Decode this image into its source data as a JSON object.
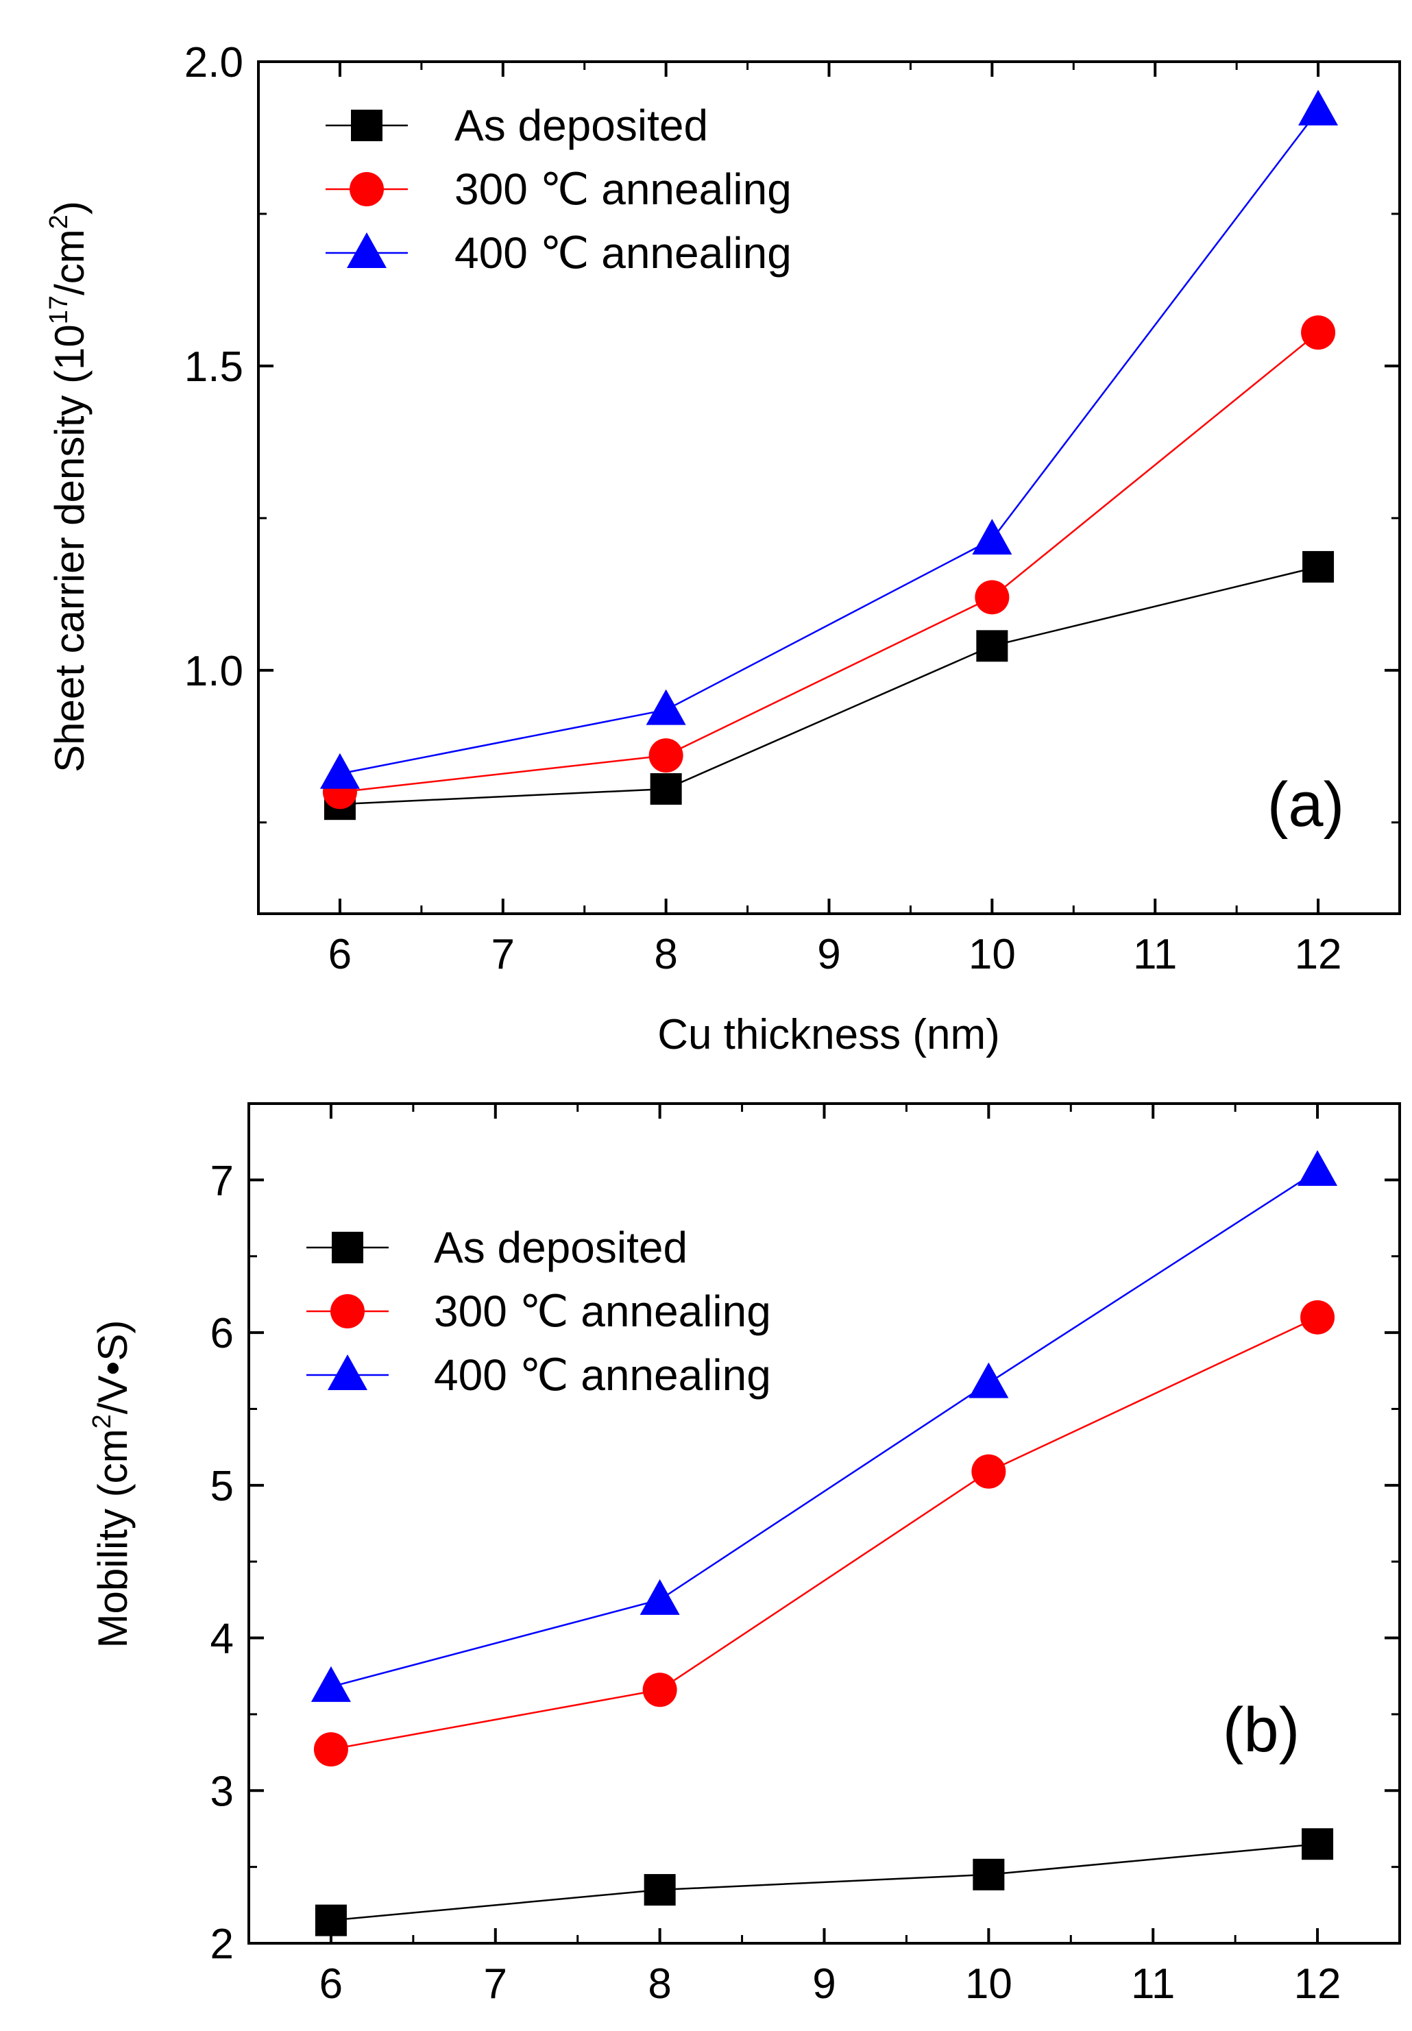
{
  "colors": {
    "as_deposited": "#000000",
    "annealing_300": "#ff0000",
    "annealing_400": "#0000ff"
  },
  "chart_data": [
    {
      "type": "line",
      "panel_label": "(a)",
      "xlabel": "Cu thickness (nm)",
      "ylabel_main": "Sheet carrier density (10",
      "ylabel_sup1": "17",
      "ylabel_mid": "/cm",
      "ylabel_sup2": "2",
      "ylabel_end": ")",
      "xlim": [
        5.5,
        12.5
      ],
      "ylim": [
        0.6,
        2.0
      ],
      "xticks": [
        6,
        7,
        8,
        9,
        10,
        11,
        12
      ],
      "yticks": [
        1.0,
        1.5,
        2.0
      ],
      "ytick_labels": [
        "1.0",
        "1.5",
        "2.0"
      ],
      "y_minor_ticks": [
        0.75,
        1.25,
        1.75
      ],
      "legend_location": "top-left",
      "x": [
        6,
        8,
        10,
        12
      ],
      "series": [
        {
          "name": "As deposited",
          "marker": "square",
          "color": "#000000",
          "values": [
            0.78,
            0.805,
            1.04,
            1.17
          ]
        },
        {
          "name": "300 ℃ annealing",
          "marker": "circle",
          "color": "#ff0000",
          "values": [
            0.8,
            0.86,
            1.12,
            1.555
          ]
        },
        {
          "name": "400 ℃ annealing",
          "marker": "triangle",
          "color": "#0000ff",
          "values": [
            0.83,
            0.935,
            1.215,
            1.92
          ]
        }
      ]
    },
    {
      "type": "line",
      "panel_label": "(b)",
      "xlabel": "",
      "ylabel_main": "Mobility (cm",
      "ylabel_sup1": "2",
      "ylabel_mid": "/V•S)",
      "ylabel_sup2": "",
      "ylabel_end": "",
      "xlim": [
        5.5,
        12.5
      ],
      "ylim": [
        2.0,
        7.5
      ],
      "xticks": [
        6,
        7,
        8,
        9,
        10,
        11,
        12
      ],
      "yticks": [
        2,
        3,
        4,
        5,
        6,
        7
      ],
      "ytick_labels": [
        "2",
        "3",
        "4",
        "5",
        "6",
        "7"
      ],
      "y_minor_ticks": [
        2.5,
        3.5,
        4.5,
        5.5,
        6.5,
        7.5
      ],
      "legend_location": "upper-left",
      "x": [
        6,
        8,
        10,
        12
      ],
      "series": [
        {
          "name": "As deposited",
          "marker": "square",
          "color": "#000000",
          "values": [
            2.15,
            2.35,
            2.45,
            2.65
          ]
        },
        {
          "name": "300 ℃ annealing",
          "marker": "circle",
          "color": "#ff0000",
          "values": [
            3.27,
            3.66,
            5.09,
            6.1
          ]
        },
        {
          "name": "400 ℃ annealing",
          "marker": "triangle",
          "color": "#0000ff",
          "values": [
            3.68,
            4.25,
            5.67,
            7.06
          ]
        }
      ]
    }
  ]
}
